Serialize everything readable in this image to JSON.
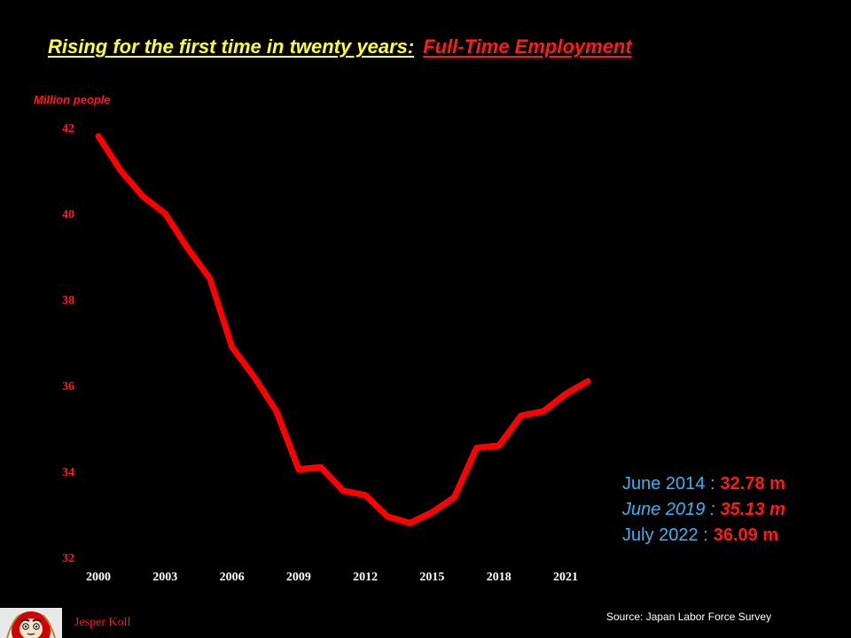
{
  "title": {
    "part1": "Rising for the first time in twenty years:",
    "part2": "Full-Time Employment"
  },
  "chart_data": {
    "type": "line",
    "title": "Rising for the first time in twenty years: Full-Time Employment",
    "ylabel": "Million people",
    "xlabel": "",
    "ylim": [
      32,
      42
    ],
    "xlim": [
      2000,
      2022
    ],
    "y_ticks": [
      32,
      34,
      36,
      38,
      40,
      42
    ],
    "x_ticks": [
      2000,
      2003,
      2006,
      2009,
      2012,
      2015,
      2018,
      2021
    ],
    "grid": false,
    "series": [
      {
        "color": "#FF0000",
        "x": [
          2000,
          2001,
          2002,
          2003,
          2004,
          2005,
          2006,
          2007,
          2008,
          2009,
          2010,
          2011,
          2012,
          2013,
          2014,
          2015,
          2016,
          2017,
          2018,
          2019,
          2020,
          2021,
          2022
        ],
        "values": [
          41.8,
          41.0,
          40.4,
          40.0,
          39.2,
          38.5,
          36.9,
          36.2,
          35.4,
          34.05,
          34.1,
          33.55,
          33.45,
          32.95,
          32.8,
          33.05,
          33.4,
          34.55,
          34.6,
          35.3,
          35.4,
          35.8,
          36.1
        ]
      }
    ]
  },
  "stats": [
    {
      "label": "June 2014 :",
      "value": "32.78 m",
      "italic": false
    },
    {
      "label": "June 2019 :",
      "value": "35.13 m",
      "italic": true
    },
    {
      "label": "July  2022 :",
      "value": "36.09 m",
      "italic": false
    }
  ],
  "footer": {
    "author": "Jesper Koll",
    "source": "Source: Japan Labor Force Survey"
  },
  "colors": {
    "background": "#000000",
    "title_primary": "#FFFF33",
    "accent_red": "#FF1A1A",
    "stat_label": "#3BB3F2"
  }
}
